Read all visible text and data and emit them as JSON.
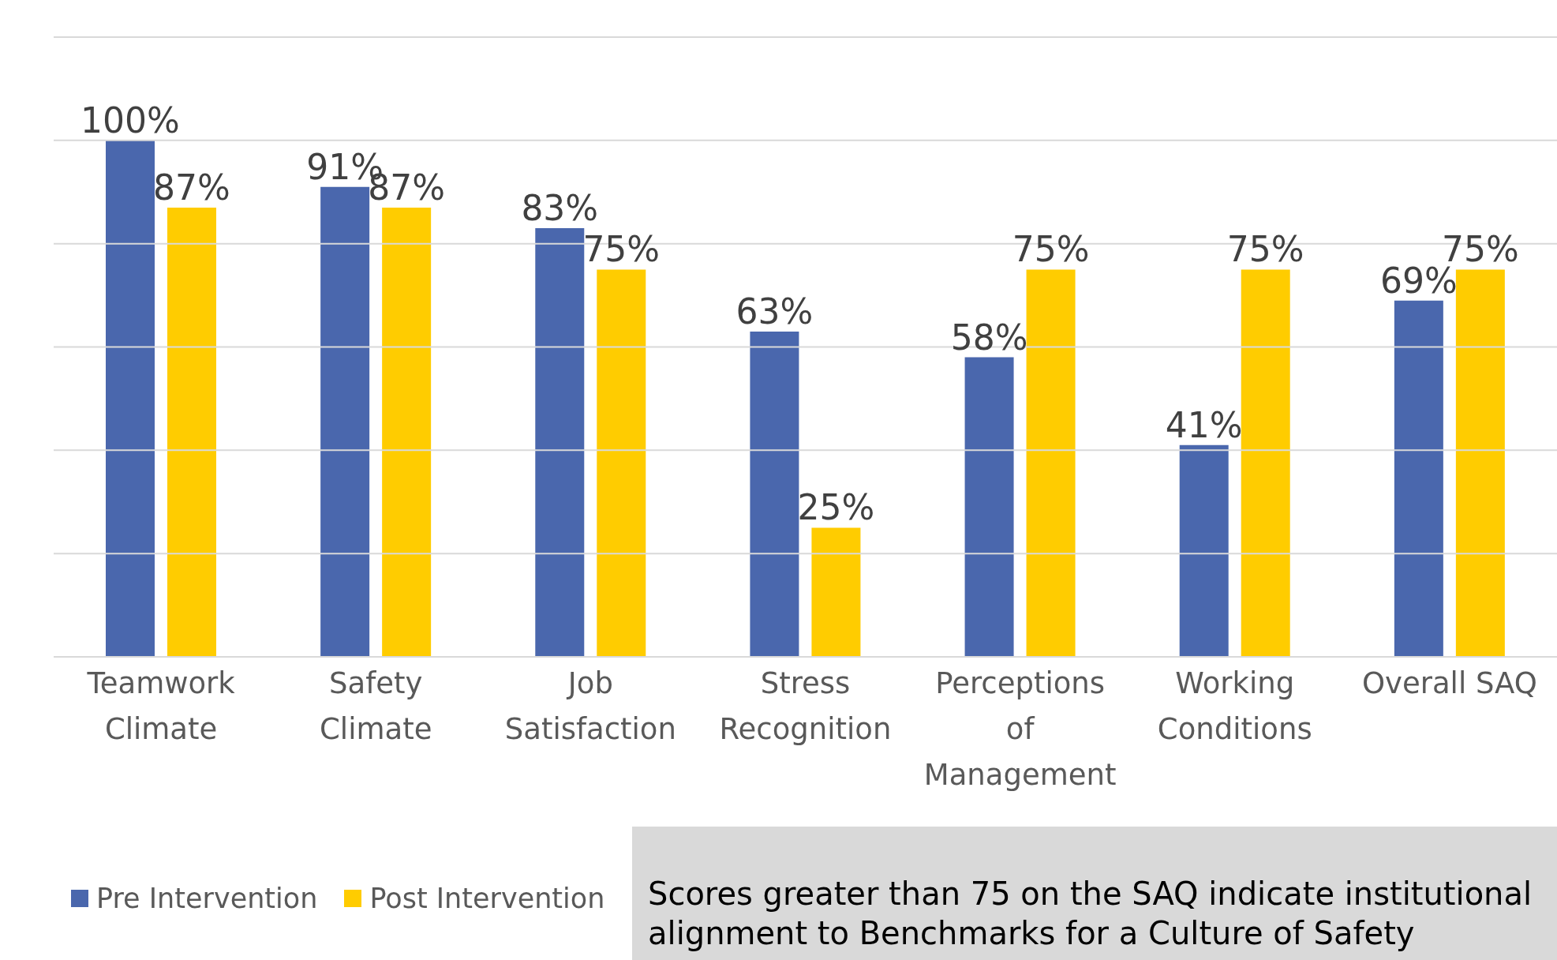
{
  "chart_data": {
    "type": "bar",
    "categories": [
      "Teamwork Climate",
      "Safety Climate",
      "Job Satisfaction",
      "Stress Recognition",
      "Perceptions of Management",
      "Working Conditions",
      "Overall SAQ"
    ],
    "series": [
      {
        "name": "Pre Intervention",
        "color": "#4a67ad",
        "values": [
          100,
          91,
          83,
          63,
          58,
          41,
          69
        ],
        "value_labels": [
          "100%",
          "91%",
          "83%",
          "63%",
          "58%",
          "41%",
          "69%"
        ]
      },
      {
        "name": "Post Intervention",
        "color": "#ffcc00",
        "values": [
          87,
          87,
          75,
          25,
          75,
          75,
          75
        ],
        "value_labels": [
          "87%",
          "87%",
          "75%",
          "25%",
          "75%",
          "75%",
          "75%"
        ]
      }
    ],
    "ylim": [
      0,
      120
    ],
    "yticks": [
      {
        "value": 0,
        "label": null
      },
      {
        "value": 20,
        "label": null
      },
      {
        "value": 40,
        "label": null
      },
      {
        "value": 60,
        "label": null
      },
      {
        "value": 80,
        "label": null
      },
      {
        "value": 100,
        "label": null
      },
      {
        "value": 120,
        "label": null
      }
    ],
    "tick_labels": "x",
    "grid": "y",
    "legend": "bottom left",
    "annotations": [
      "Scores greater than 75 on the SAQ indicate institutional alignment to Benchmarks for a Culture of Safety"
    ]
  }
}
